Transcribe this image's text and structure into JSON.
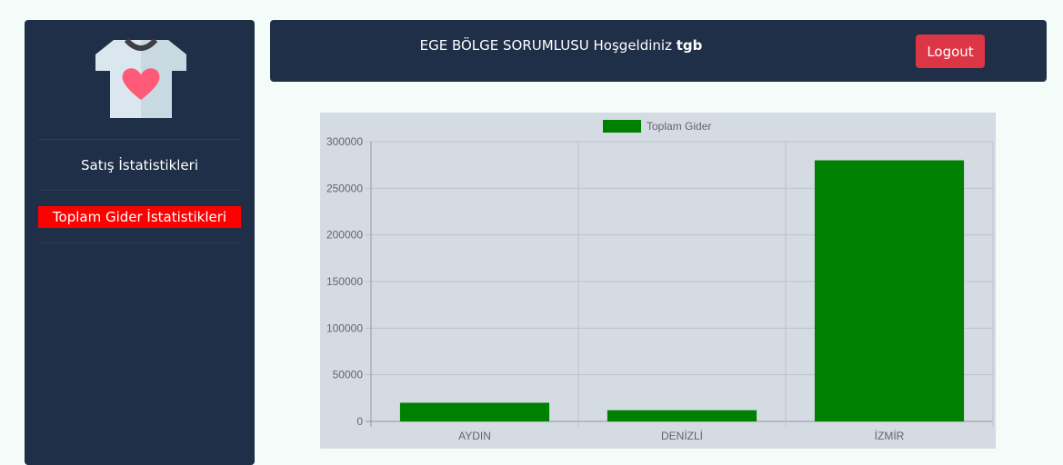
{
  "sidebar": {
    "logo": "tshirt-heart-logo",
    "items": [
      {
        "label": "Satış İstatistikleri",
        "active": false
      },
      {
        "label": "Toplam Gider İstatistikleri",
        "active": true
      }
    ]
  },
  "header": {
    "welcome_prefix": "EGE BÖLGE SORUMLUSU Hoşgeldiniz",
    "username": "tgb",
    "logout_label": "Logout"
  },
  "colors": {
    "panel": "#1f2f47",
    "active_menu": "#ff0000",
    "logout": "#dc3545",
    "bar": "#008000",
    "chart_bg": "#d4dbe3"
  },
  "chart_data": {
    "type": "bar",
    "categories": [
      "AYDIN",
      "DENİZLİ",
      "İZMİR"
    ],
    "series": [
      {
        "name": "Toplam Gider",
        "values": [
          20000,
          12000,
          280000
        ]
      }
    ],
    "ylim": [
      0,
      300000
    ],
    "yticks": [
      0,
      50000,
      100000,
      150000,
      200000,
      250000,
      300000
    ],
    "legend": "top",
    "grid": true
  }
}
